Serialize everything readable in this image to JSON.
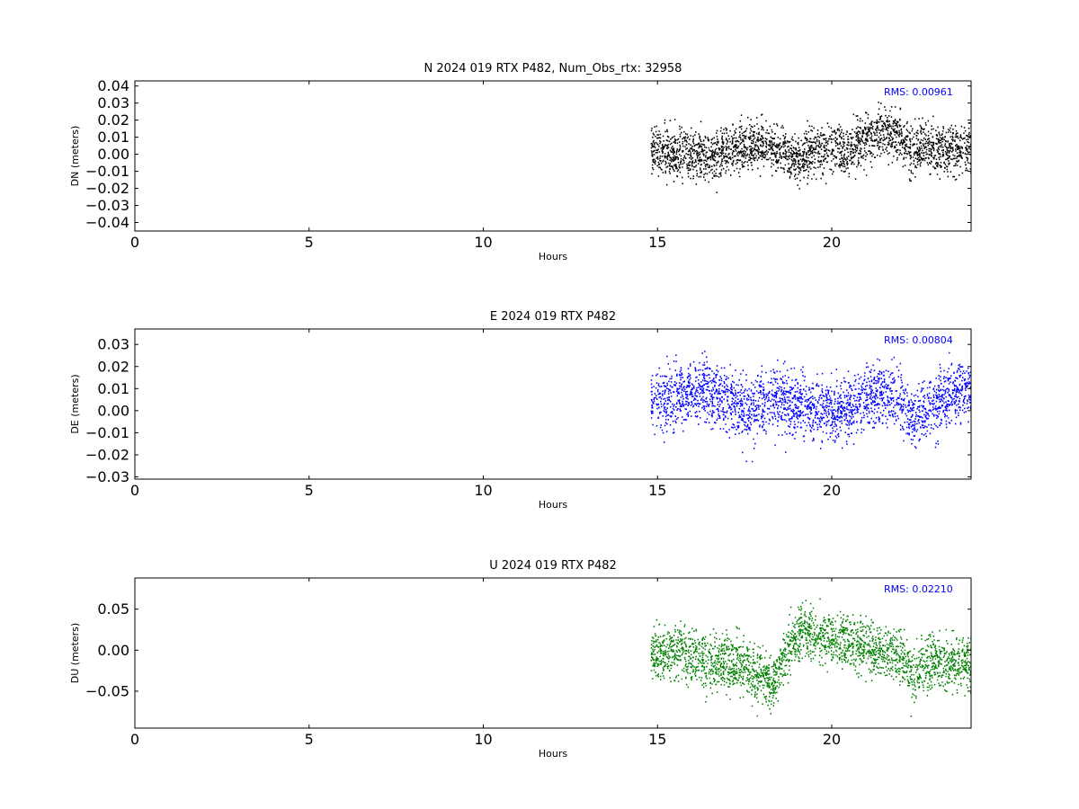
{
  "chart_data": [
    {
      "type": "scatter",
      "title": "N 2024 019 RTX  P482, Num_Obs_rtx: 32958",
      "xlabel": "Hours",
      "ylabel": "DN (meters)",
      "xlim": [
        0,
        24
      ],
      "ylim": [
        -0.045,
        0.043
      ],
      "xticks": [
        "0",
        "5",
        "10",
        "15",
        "20"
      ],
      "xtick_values": [
        0,
        5,
        10,
        15,
        20
      ],
      "yticks": [
        "−0.04",
        "−0.03",
        "−0.02",
        "−0.01",
        "0.00",
        "0.01",
        "0.02",
        "0.03",
        "0.04"
      ],
      "ytick_values": [
        -0.04,
        -0.03,
        -0.02,
        -0.01,
        0.0,
        0.01,
        0.02,
        0.03,
        0.04
      ],
      "annotation": "RMS:  0.00961",
      "color": "#000000",
      "grid": false,
      "data_start_hour": 14.8,
      "data_end_hour": 24.0,
      "trend": {
        "x": [
          14.8,
          15.5,
          16.0,
          16.5,
          17.0,
          17.5,
          18.0,
          18.5,
          19.0,
          19.5,
          20.0,
          20.5,
          21.0,
          21.5,
          22.0,
          22.3,
          22.6,
          23.0,
          23.5,
          24.0
        ],
        "y": [
          0.003,
          0.002,
          0.0,
          -0.002,
          0.003,
          0.005,
          0.006,
          0.003,
          -0.002,
          0.002,
          0.003,
          0.004,
          0.008,
          0.015,
          0.012,
          0.0,
          0.005,
          0.004,
          0.003,
          0.004
        ]
      },
      "spread": 0.008
    },
    {
      "type": "scatter",
      "title": "E 2024 019 RTX  P482",
      "xlabel": "Hours",
      "ylabel": "DE (meters)",
      "xlim": [
        0,
        24
      ],
      "ylim": [
        -0.031,
        0.037
      ],
      "xticks": [
        "0",
        "5",
        "10",
        "15",
        "20"
      ],
      "xtick_values": [
        0,
        5,
        10,
        15,
        20
      ],
      "yticks": [
        "−0.03",
        "−0.02",
        "−0.01",
        "0.00",
        "0.01",
        "0.02",
        "0.03"
      ],
      "ytick_values": [
        -0.03,
        -0.02,
        -0.01,
        0.0,
        0.01,
        0.02,
        0.03
      ],
      "annotation": "RMS:  0.00804",
      "color": "#0000ff",
      "grid": false,
      "data_start_hour": 14.8,
      "data_end_hour": 24.0,
      "trend": {
        "x": [
          14.8,
          15.5,
          16.0,
          16.5,
          17.0,
          17.5,
          18.0,
          18.5,
          19.0,
          19.5,
          20.0,
          20.5,
          21.0,
          21.5,
          22.0,
          22.3,
          22.6,
          23.0,
          23.5,
          24.0
        ],
        "y": [
          0.004,
          0.006,
          0.01,
          0.009,
          0.004,
          0.0,
          0.003,
          0.006,
          0.002,
          0.0,
          0.0,
          0.002,
          0.006,
          0.008,
          0.004,
          -0.004,
          0.0,
          0.004,
          0.008,
          0.01
        ]
      },
      "spread": 0.0075
    },
    {
      "type": "scatter",
      "title": "U 2024 019 RTX  P482",
      "xlabel": "Hours",
      "ylabel": "DU (meters)",
      "xlim": [
        0,
        24
      ],
      "ylim": [
        -0.095,
        0.088
      ],
      "xticks": [
        "0",
        "5",
        "10",
        "15",
        "20"
      ],
      "xtick_values": [
        0,
        5,
        10,
        15,
        20
      ],
      "yticks": [
        "−0.05",
        "0.00",
        "0.05"
      ],
      "ytick_values": [
        -0.05,
        0.0,
        0.05
      ],
      "annotation": "RMS:  0.02210",
      "color": "#008000",
      "grid": false,
      "data_start_hour": 14.8,
      "data_end_hour": 24.0,
      "trend": {
        "x": [
          14.8,
          15.5,
          16.0,
          16.5,
          17.0,
          17.5,
          18.0,
          18.3,
          18.6,
          19.0,
          19.5,
          20.0,
          20.5,
          21.0,
          21.5,
          22.0,
          22.3,
          22.6,
          23.0,
          23.5,
          24.0
        ],
        "y": [
          -0.005,
          0.0,
          -0.005,
          -0.02,
          -0.015,
          -0.02,
          -0.03,
          -0.04,
          -0.01,
          0.02,
          0.02,
          0.015,
          0.01,
          0.005,
          0.0,
          -0.01,
          -0.03,
          -0.02,
          -0.015,
          -0.015,
          -0.015
        ]
      },
      "spread": 0.018
    }
  ]
}
